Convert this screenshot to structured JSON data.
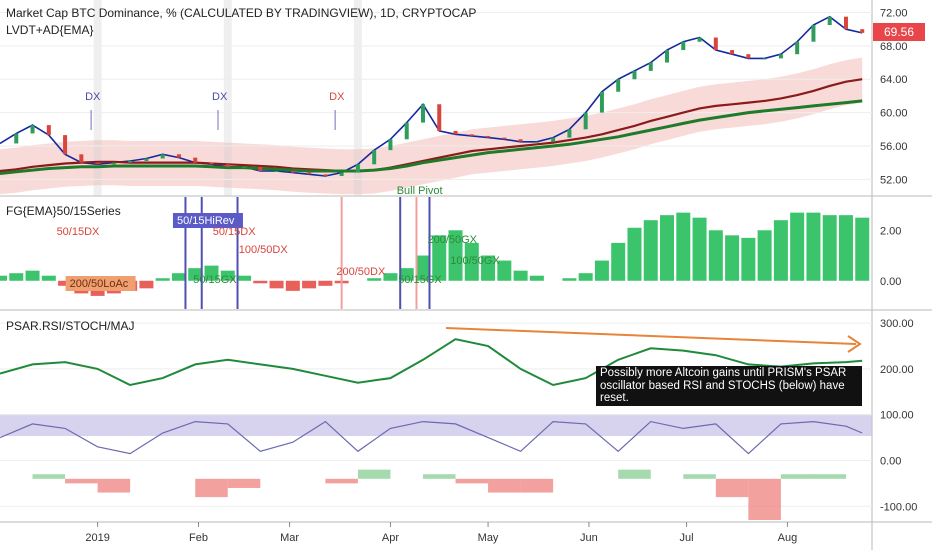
{
  "chart_data": [
    {
      "type": "line",
      "panel": "price",
      "title": "Market Cap BTC Dominance, % (CALCULATED BY TRADINGVIEW), 1D, CRYPTOCAP",
      "indicator": "LVDT+AD{EMA}",
      "ylim": [
        50,
        73.5
      ],
      "yticks": [
        "72.00",
        "68.00",
        "64.00",
        "60.00",
        "56.00",
        "52.00"
      ],
      "last_value": "69.56",
      "x": [
        0,
        5,
        10,
        15,
        20,
        25,
        30,
        35,
        40,
        45,
        50,
        55,
        60,
        65,
        70,
        75,
        80,
        85,
        90,
        95,
        100,
        105,
        110,
        115,
        120,
        125,
        130,
        135,
        140,
        145,
        150,
        155,
        160,
        165,
        170,
        175,
        180,
        185,
        190,
        195,
        200,
        205,
        210,
        215,
        220,
        225,
        230,
        235,
        240,
        245,
        250,
        255,
        260,
        265
      ],
      "series": [
        {
          "values": [
            56.3,
            57.5,
            58.5,
            57.3,
            55.0,
            54.0,
            53.8,
            54.0,
            54.2,
            54.5,
            55.0,
            54.6,
            54.0,
            53.8,
            53.5,
            53.5,
            53.0,
            53.0,
            52.8,
            52.6,
            52.4,
            52.8,
            53.8,
            55.5,
            56.8,
            58.8,
            61.0,
            57.8,
            57.4,
            57.2,
            57.0,
            56.8,
            56.5,
            56.5,
            57.0,
            58.0,
            60.0,
            62.5,
            64.0,
            65.0,
            66.0,
            67.5,
            68.5,
            69.0,
            67.5,
            67.0,
            66.5,
            66.5,
            67.0,
            68.5,
            70.5,
            71.5,
            70.0,
            69.56
          ]
        },
        {
          "values": [
            53.0,
            53.2,
            53.5,
            53.7,
            53.9,
            54.0,
            54.1,
            54.1,
            54.0,
            54.0,
            54.0,
            54.0,
            54.0,
            53.9,
            53.8,
            53.7,
            53.6,
            53.5,
            53.3,
            53.2,
            53.1,
            53.0,
            53.0,
            53.1,
            53.4,
            53.8,
            54.2,
            54.6,
            55.0,
            55.4,
            55.6,
            55.8,
            56.0,
            56.2,
            56.4,
            56.7,
            57.0,
            57.4,
            57.9,
            58.4,
            59.0,
            59.5,
            60.0,
            60.5,
            60.8,
            61.0,
            61.2,
            61.4,
            61.7,
            62.1,
            62.6,
            63.2,
            63.7,
            64.0
          ]
        },
        {
          "values": [
            52.7,
            52.9,
            53.1,
            53.3,
            53.4,
            53.5,
            53.5,
            53.6,
            53.6,
            53.6,
            53.6,
            53.6,
            53.6,
            53.5,
            53.4,
            53.4,
            53.3,
            53.2,
            53.1,
            53.0,
            53.0,
            53.0,
            53.0,
            53.1,
            53.3,
            53.6,
            54.0,
            54.3,
            54.6,
            54.9,
            55.2,
            55.4,
            55.6,
            55.8,
            56.0,
            56.2,
            56.5,
            56.8,
            57.1,
            57.5,
            57.9,
            58.3,
            58.7,
            59.1,
            59.4,
            59.7,
            60.0,
            60.2,
            60.4,
            60.6,
            60.8,
            61.0,
            61.2,
            61.4
          ]
        }
      ],
      "band_x": [
        30,
        70,
        110
      ],
      "dx_annotations": [
        {
          "label": "DX",
          "x": 28
        },
        {
          "label": "DX",
          "x": 67
        },
        {
          "label": "DX",
          "x": 103
        }
      ],
      "bull_pivot": {
        "label": "Bull Pivot",
        "x": 125
      }
    },
    {
      "type": "bar",
      "panel": "oscillator",
      "title": "FG{EMA}50/15Series",
      "ylim": [
        -1.0,
        3.2
      ],
      "yticks": [
        "2.00",
        "0.00"
      ],
      "x": [
        0,
        5,
        10,
        15,
        20,
        25,
        30,
        35,
        40,
        45,
        50,
        55,
        60,
        65,
        70,
        75,
        80,
        85,
        90,
        95,
        100,
        105,
        110,
        115,
        120,
        125,
        130,
        135,
        140,
        145,
        150,
        155,
        160,
        165,
        170,
        175,
        180,
        185,
        190,
        195,
        200,
        205,
        210,
        215,
        220,
        225,
        230,
        235,
        240,
        245,
        250,
        255,
        260,
        265
      ],
      "values": [
        0.2,
        0.3,
        0.4,
        0.2,
        -0.2,
        -0.5,
        -0.6,
        -0.5,
        -0.4,
        -0.3,
        0.1,
        0.3,
        0.5,
        0.6,
        0.4,
        0.2,
        -0.1,
        -0.3,
        -0.4,
        -0.3,
        -0.2,
        -0.1,
        0.0,
        0.1,
        0.3,
        0.5,
        1.0,
        1.8,
        2.0,
        1.5,
        1.0,
        0.8,
        0.4,
        0.2,
        0.0,
        0.1,
        0.3,
        0.8,
        1.5,
        2.1,
        2.4,
        2.6,
        2.7,
        2.5,
        2.0,
        1.8,
        1.7,
        2.0,
        2.4,
        2.7,
        2.7,
        2.6,
        2.6,
        2.5
      ],
      "labels": [
        {
          "text": "50/15DX",
          "x": 18
        },
        {
          "text": "200/50LoAc",
          "x": 22
        },
        {
          "text": "50/15HiRev",
          "x": 55
        },
        {
          "text": "50/15DX",
          "x": 66
        },
        {
          "text": "50/15GX",
          "x": 60
        },
        {
          "text": "100/50DX",
          "x": 74
        },
        {
          "text": "200/50DX",
          "x": 104
        },
        {
          "text": "50/15GX",
          "x": 123
        },
        {
          "text": "100/50GX",
          "x": 139
        },
        {
          "text": "200/50GX",
          "x": 132
        }
      ],
      "vlines_x": [
        57,
        62,
        73,
        105,
        123,
        128,
        132
      ]
    },
    {
      "type": "line",
      "panel": "psar",
      "title": "PSAR.RSI/STOCH/MAJ",
      "ylim": [
        -130,
        320
      ],
      "yticks": [
        "300.00",
        "200.00",
        "100.00",
        "0.00",
        "-100.00"
      ],
      "x": [
        0,
        10,
        20,
        30,
        40,
        50,
        60,
        70,
        80,
        90,
        100,
        110,
        120,
        130,
        140,
        150,
        160,
        170,
        180,
        190,
        200,
        210,
        220,
        230,
        240,
        250,
        260,
        265
      ],
      "values": [
        190,
        210,
        215,
        200,
        165,
        180,
        210,
        220,
        210,
        200,
        185,
        170,
        180,
        220,
        265,
        250,
        200,
        165,
        180,
        220,
        245,
        240,
        230,
        210,
        205,
        212,
        215,
        218
      ],
      "stoch_values": [
        50,
        80,
        70,
        30,
        15,
        60,
        85,
        80,
        20,
        40,
        85,
        20,
        70,
        85,
        80,
        50,
        20,
        85,
        80,
        20,
        85,
        70,
        80,
        15,
        80,
        85,
        75,
        60
      ],
      "osc_values": [
        -30,
        -40,
        -30,
        -50,
        -70,
        -40,
        -40,
        -80,
        -60,
        -40,
        -40,
        -50,
        -20,
        -40,
        -30,
        -50,
        -70,
        -70,
        -40,
        -40,
        -20,
        -40,
        -30,
        -80,
        -130,
        -30,
        -30,
        -40
      ],
      "annotation": "Possibly more Altcoin gains until PRISM's PSAR oscillator based RSI and STOCHS (below) have reset."
    },
    {
      "type": "axis",
      "panel": "time",
      "tick_labels": [
        "2019",
        "Feb",
        "Mar",
        "Apr",
        "May",
        "Jun",
        "Jul",
        "Aug"
      ],
      "tick_x": [
        30,
        61,
        89,
        120,
        150,
        181,
        211,
        242
      ],
      "xlim": [
        0,
        268
      ]
    }
  ]
}
